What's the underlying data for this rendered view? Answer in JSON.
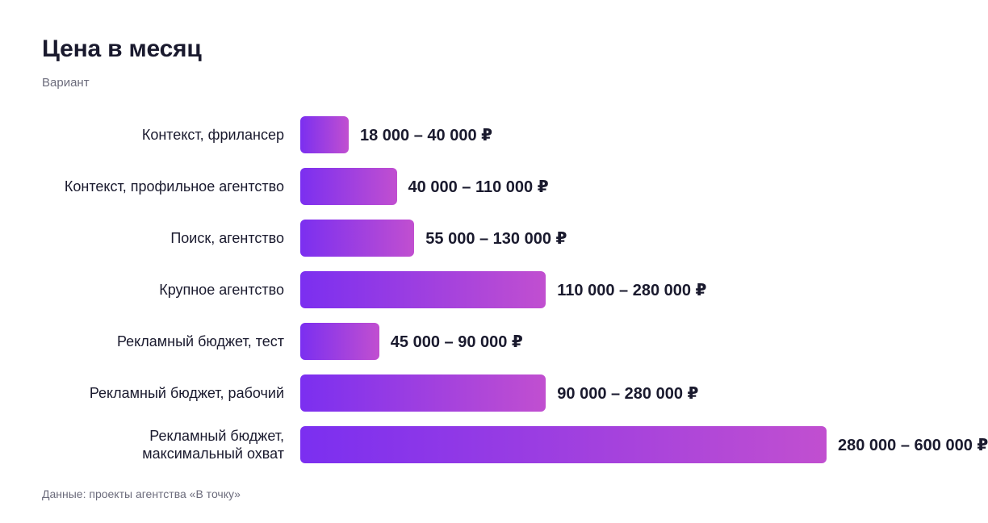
{
  "title": "Цена в месяц",
  "subtitle": "Вариант",
  "footer": "Данные: проекты агентства «В точку»",
  "colors": {
    "bar_start": "#7b2ff0",
    "bar_end": "#c14fd0",
    "text": "#1a1a2e",
    "muted": "#6b6b7b"
  },
  "chart_data": {
    "type": "bar",
    "orientation": "horizontal",
    "title": "Цена в месяц",
    "subtitle": "Вариант",
    "categories": [
      "Контекст, фрилансер",
      "Контекст, профильное агентство",
      "Поиск, агентство",
      "Крупное агентство",
      "Рекламный бюджет, тест",
      "Рекламный бюджет, рабочий",
      "Рекламный бюджет,\nмаксимальный охват"
    ],
    "ranges": [
      [
        18000,
        40000
      ],
      [
        40000,
        110000
      ],
      [
        55000,
        130000
      ],
      [
        110000,
        280000
      ],
      [
        45000,
        90000
      ],
      [
        90000,
        280000
      ],
      [
        280000,
        600000
      ]
    ],
    "value_labels": [
      "18 000 – 40 000 ₽",
      "40 000 – 110 000 ₽",
      "55 000 – 130 000 ₽",
      "110 000 – 280 000 ₽",
      "45 000 – 90 000 ₽",
      "90 000 – 280 000 ₽",
      "280 000 – 600 000 ₽"
    ],
    "unit": "₽",
    "grid": false,
    "legend": "none"
  }
}
